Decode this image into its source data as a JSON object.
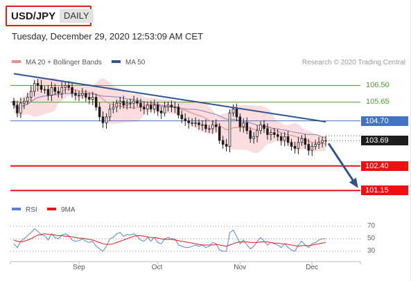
{
  "header": {
    "pair": "USD/JPY",
    "timeframe": "DAILY"
  },
  "timestamp": "Tuesday, December 29, 2020 12:53:09 AM CET",
  "legend": {
    "ma20": "MA 20 + Bollinger Bands",
    "ma50": "MA 50",
    "rsi": "RSI",
    "ma9": "9MA",
    "credit": "Research © 2020 Trading Central"
  },
  "colors": {
    "resistance": "#4472c4",
    "support": "#ee1111",
    "target": "#4aa52e",
    "trendline": "#2f5496",
    "bollinger": "#fbd5d5",
    "ma20": "#f28b8b",
    "ma50": "#9a8ec2",
    "candle": "#1d1d1d",
    "rsi": "#5b82d6",
    "rsi_ma": "#e01b1b",
    "current": "#1d1d1d"
  },
  "levels": [
    {
      "value": "106.50",
      "kind": "target"
    },
    {
      "value": "105.65",
      "kind": "target"
    },
    {
      "value": "104.70",
      "kind": "resistance"
    },
    {
      "value": "103.69",
      "kind": "current"
    },
    {
      "value": "102.40",
      "kind": "support"
    },
    {
      "value": "101.15",
      "kind": "support"
    }
  ],
  "chart_data": [
    {
      "type": "candlestick",
      "title": "USD/JPY DAILY",
      "ylim": [
        100.7,
        107.4
      ],
      "x_labels": [
        "Sep",
        "Oct",
        "Nov",
        "Dec"
      ],
      "x_label_positions": [
        19,
        42,
        66,
        87
      ],
      "close_series": [
        105.5,
        105.1,
        105.6,
        105.7,
        105.9,
        106.2,
        106.6,
        106.5,
        106.3,
        106.3,
        106.0,
        106.4,
        106.2,
        106.1,
        106.4,
        106.5,
        106.4,
        106.1,
        106.0,
        106.0,
        106.1,
        105.9,
        105.8,
        105.9,
        105.4,
        104.9,
        104.6,
        104.9,
        105.3,
        105.4,
        105.6,
        105.7,
        105.5,
        105.6,
        105.6,
        105.7,
        105.6,
        105.4,
        105.3,
        105.5,
        105.3,
        105.5,
        105.2,
        105.1,
        105.4,
        105.5,
        105.4,
        105.4,
        105.0,
        104.8,
        104.7,
        104.6,
        104.6,
        104.6,
        104.5,
        104.5,
        104.3,
        104.3,
        104.5,
        104.4,
        103.7,
        103.5,
        103.4,
        105.1,
        105.3,
        104.9,
        104.4,
        104.6,
        104.2,
        103.8,
        103.9,
        104.2,
        104.5,
        104.3,
        104.0,
        104.1,
        104.0,
        103.9,
        103.7,
        103.9,
        103.6,
        103.4,
        103.3,
        103.6,
        103.8,
        103.5,
        103.2,
        103.4,
        103.5,
        103.6,
        103.7,
        103.7
      ],
      "trendline": {
        "start": [
          0,
          107.1
        ],
        "end": [
          91,
          104.65
        ]
      },
      "projection": {
        "from": 103.69,
        "to": 101.15
      }
    },
    {
      "type": "line",
      "title": "RSI",
      "ylim": [
        20,
        80
      ],
      "reference_levels": [
        70,
        50,
        30
      ],
      "series": [
        {
          "name": "RSI",
          "values": [
            42,
            36,
            46,
            50,
            55,
            60,
            66,
            62,
            56,
            55,
            48,
            58,
            52,
            50,
            56,
            58,
            55,
            48,
            46,
            47,
            50,
            46,
            44,
            46,
            38,
            34,
            30,
            38,
            50,
            52,
            58,
            60,
            54,
            57,
            56,
            58,
            54,
            48,
            46,
            52,
            46,
            52,
            44,
            42,
            50,
            52,
            50,
            50,
            40,
            38,
            36,
            36,
            38,
            40,
            38,
            40,
            36,
            38,
            44,
            42,
            32,
            30,
            30,
            60,
            64,
            54,
            42,
            48,
            40,
            34,
            38,
            46,
            52,
            46,
            40,
            44,
            42,
            40,
            36,
            42,
            36,
            32,
            30,
            40,
            46,
            40,
            36,
            42,
            44,
            48,
            50,
            50
          ]
        },
        {
          "name": "9MA",
          "values": [
            48,
            46,
            45,
            46,
            48,
            50,
            53,
            56,
            57,
            58,
            57,
            57,
            56,
            55,
            55,
            54,
            54,
            53,
            52,
            51,
            51,
            50,
            49,
            48,
            46,
            44,
            42,
            41,
            41,
            42,
            44,
            46,
            48,
            50,
            52,
            54,
            55,
            55,
            54,
            53,
            52,
            52,
            51,
            50,
            49,
            49,
            49,
            48,
            47,
            46,
            45,
            44,
            43,
            42,
            41,
            40,
            40,
            40,
            40,
            41,
            40,
            39,
            38,
            40,
            42,
            44,
            45,
            45,
            45,
            44,
            44,
            44,
            45,
            45,
            45,
            44,
            43,
            43,
            42,
            42,
            41,
            40,
            39,
            38,
            39,
            39,
            39,
            40,
            41,
            42,
            43,
            44
          ]
        }
      ]
    }
  ]
}
